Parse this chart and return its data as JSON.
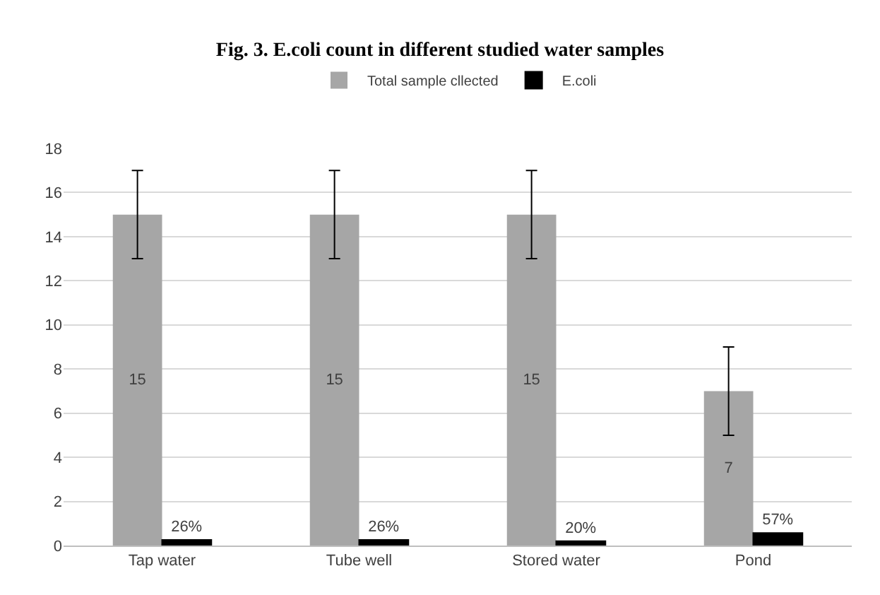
{
  "chart_data": {
    "type": "bar",
    "title": "Fig. 3. E.coli count in different studied water samples",
    "categories": [
      "Tap water",
      "Tube well",
      "Stored water",
      "Pond"
    ],
    "series": [
      {
        "name": "Total sample cllected",
        "color": "#a6a6a6",
        "values": [
          15,
          15,
          15,
          7
        ],
        "errors": [
          2,
          2,
          2,
          2
        ],
        "value_labels": [
          "15",
          "15",
          "15",
          "7"
        ]
      },
      {
        "name": "E.coli",
        "color": "#000000",
        "values": [
          0.26,
          0.26,
          0.2,
          0.57
        ],
        "value_labels": [
          "26%",
          "26%",
          "20%",
          "57%"
        ]
      }
    ],
    "ylim": [
      0,
      18
    ],
    "yticks": [
      0,
      2,
      4,
      6,
      8,
      10,
      12,
      14,
      16,
      18
    ],
    "grid": "y",
    "legend": "top"
  }
}
